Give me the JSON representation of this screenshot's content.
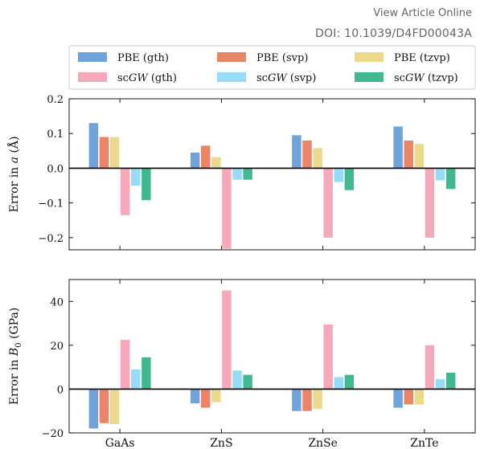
{
  "header": {
    "view_article": "View Article Online",
    "doi": "DOI: 10.1039/D4FD00043A"
  },
  "colors": {
    "PBE (gth)": "#6fa3dc",
    "PBE (svp)": "#ec8567",
    "PBE (tzvp)": "#ecd98c",
    "scGW (gth)": "#f6a9ba",
    "scGW (svp)": "#97dbf6",
    "scGW (tzvp)": "#3fb98d"
  },
  "chart_data": [
    {
      "type": "bar",
      "categories": [
        "GaAs",
        "ZnS",
        "ZnSe",
        "ZnTe"
      ],
      "ylabel": "Error in a (Å)",
      "ylim": [
        -0.235,
        0.2
      ],
      "yticks": [
        -0.2,
        -0.1,
        0.0,
        0.1,
        0.2
      ],
      "ytick_labels": [
        "−0.2",
        "−0.1",
        "0.0",
        "0.1",
        "0.2"
      ],
      "series": [
        {
          "name": "PBE (gth)",
          "values": [
            0.13,
            0.045,
            0.095,
            0.12
          ]
        },
        {
          "name": "PBE (svp)",
          "values": [
            0.09,
            0.065,
            0.08,
            0.08
          ]
        },
        {
          "name": "PBE (tzvp)",
          "values": [
            0.09,
            0.032,
            0.058,
            0.07
          ]
        },
        {
          "name": "scGW (gth)",
          "values": [
            -0.135,
            -0.232,
            -0.2,
            -0.2
          ]
        },
        {
          "name": "scGW (svp)",
          "values": [
            -0.05,
            -0.033,
            -0.04,
            -0.035
          ]
        },
        {
          "name": "scGW (tzvp)",
          "values": [
            -0.092,
            -0.033,
            -0.063,
            -0.06
          ]
        }
      ],
      "legend": "top"
    },
    {
      "type": "bar",
      "categories": [
        "GaAs",
        "ZnS",
        "ZnSe",
        "ZnTe"
      ],
      "ylabel": "Error in B0 (GPa)",
      "ylim": [
        -20,
        50
      ],
      "yticks": [
        -20,
        0,
        20,
        40
      ],
      "ytick_labels": [
        "−20",
        "0",
        "20",
        "40"
      ],
      "series": [
        {
          "name": "PBE (gth)",
          "values": [
            -18,
            -6.5,
            -10,
            -8.5
          ]
        },
        {
          "name": "PBE (svp)",
          "values": [
            -15.5,
            -8.5,
            -10,
            -7
          ]
        },
        {
          "name": "PBE (tzvp)",
          "values": [
            -16,
            -6,
            -9,
            -7
          ]
        },
        {
          "name": "scGW (gth)",
          "values": [
            22.5,
            45,
            29.5,
            20
          ]
        },
        {
          "name": "scGW (svp)",
          "values": [
            9,
            8.5,
            5.5,
            4.5
          ]
        },
        {
          "name": "scGW (tzvp)",
          "values": [
            14.5,
            6.5,
            6.5,
            7.5
          ]
        }
      ]
    }
  ]
}
